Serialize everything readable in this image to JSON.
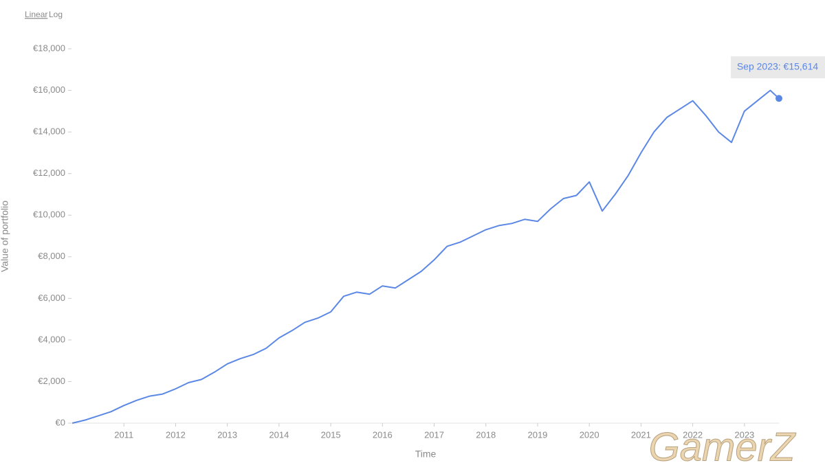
{
  "controls": {
    "linear": "Linear",
    "log": "Log"
  },
  "watermark": "GamerZ",
  "chart_data": {
    "type": "line",
    "ylabel": "Value of portfolio",
    "xlabel": "Time",
    "annotation": "Sep 2023: €15,614",
    "color": "#5b87e5",
    "log_scale": false,
    "grid": false,
    "x": [
      2010,
      2010.25,
      2010.5,
      2010.75,
      2011,
      2011.25,
      2011.5,
      2011.75,
      2012,
      2012.25,
      2012.5,
      2012.75,
      2013,
      2013.25,
      2013.5,
      2013.75,
      2014,
      2014.25,
      2014.5,
      2014.75,
      2015,
      2015.25,
      2015.5,
      2015.75,
      2016,
      2016.25,
      2016.5,
      2016.75,
      2017,
      2017.25,
      2017.5,
      2017.75,
      2018,
      2018.25,
      2018.5,
      2018.75,
      2019,
      2019.25,
      2019.5,
      2019.75,
      2020,
      2020.25,
      2020.5,
      2020.75,
      2021,
      2021.25,
      2021.5,
      2021.75,
      2022,
      2022.25,
      2022.5,
      2022.75,
      2023,
      2023.25,
      2023.5,
      2023.667
    ],
    "values": [
      0,
      150,
      350,
      550,
      850,
      1100,
      1300,
      1400,
      1650,
      1950,
      2100,
      2450,
      2850,
      3100,
      3300,
      3600,
      4100,
      4450,
      4850,
      5050,
      5350,
      6100,
      6300,
      6200,
      6600,
      6500,
      6900,
      7300,
      7850,
      8500,
      8700,
      9000,
      9300,
      9500,
      9600,
      9800,
      9700,
      10300,
      10800,
      10950,
      11600,
      10200,
      11000,
      11900,
      13000,
      14000,
      14700,
      15100,
      15500,
      14800,
      14000,
      13500,
      15000,
      15500,
      16000,
      15614
    ],
    "xlim": [
      2010,
      2023.667
    ],
    "xticks": [
      2011,
      2012,
      2013,
      2014,
      2015,
      2016,
      2017,
      2018,
      2019,
      2020,
      2021,
      2022,
      2023
    ],
    "ylim": [
      0,
      18000
    ],
    "yticks": [
      {
        "value": 0,
        "label": "€0"
      },
      {
        "value": 2000,
        "label": "€2,000"
      },
      {
        "value": 4000,
        "label": "€4,000"
      },
      {
        "value": 6000,
        "label": "€6,000"
      },
      {
        "value": 8000,
        "label": "€8,000"
      },
      {
        "value": 10000,
        "label": "€10,000"
      },
      {
        "value": 12000,
        "label": "€12,000"
      },
      {
        "value": 14000,
        "label": "€14,000"
      },
      {
        "value": 16000,
        "label": "€16,000"
      },
      {
        "value": 18000,
        "label": "€18,000"
      }
    ]
  }
}
